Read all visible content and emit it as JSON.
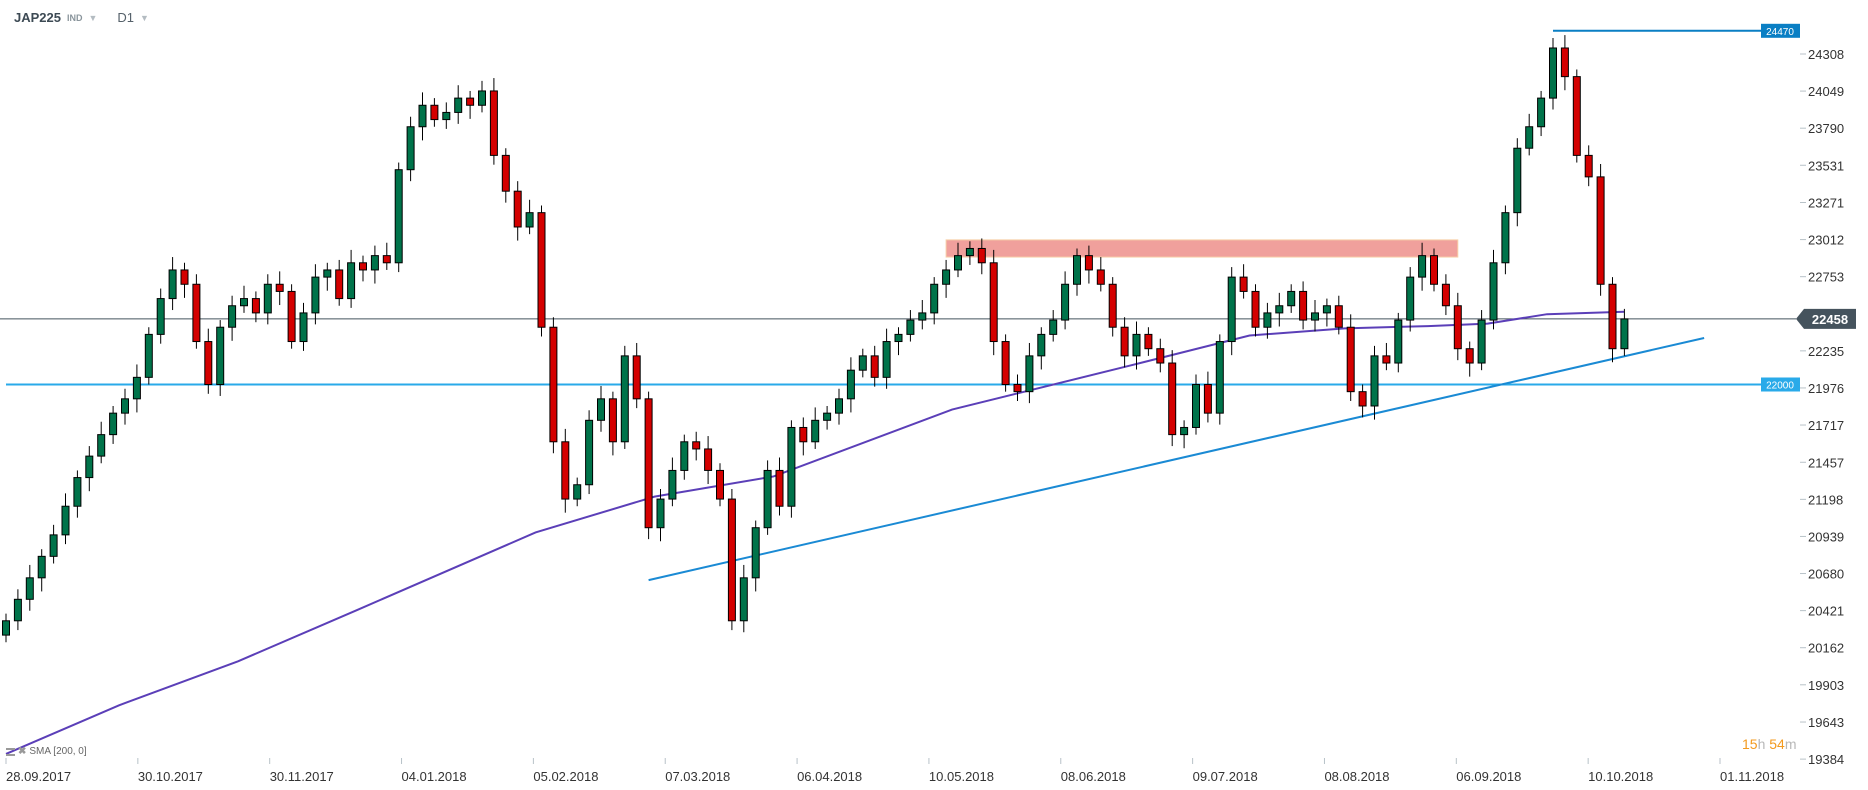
{
  "header": {
    "symbol": "JAP225",
    "type": "IND",
    "timeframe": "D1"
  },
  "indicator_legend": {
    "label": "SMA [200, 0]"
  },
  "timer": {
    "hours": "15",
    "h": "h",
    "minutes": "54",
    "m": "m"
  },
  "colors": {
    "up": "#00734a",
    "down": "#d40000",
    "sma": "#5b3fb8",
    "trend": "#1a8ad4",
    "level_22000": "#29aae9",
    "level_24470": "#0a7fc4",
    "current": "#45535d",
    "zone": "#f0a09c"
  },
  "chart_data": {
    "type": "candlestick",
    "title": "",
    "ylim": [
      19384,
      24600
    ],
    "y_ticks": [
      24308,
      24049,
      23790,
      23531,
      23271,
      23012,
      22753,
      22235,
      21976,
      21717,
      21457,
      21198,
      20939,
      20680,
      20421,
      20162,
      19903,
      19643,
      19384
    ],
    "x_ticks": [
      "28.09.2017",
      "30.10.2017",
      "30.11.2017",
      "04.01.2018",
      "05.02.2018",
      "07.03.2018",
      "06.04.2018",
      "10.05.2018",
      "08.06.2018",
      "09.07.2018",
      "08.08.2018",
      "06.09.2018",
      "10.10.2018",
      "01.11.2018"
    ],
    "closes": [
      20350,
      20500,
      20650,
      20800,
      20950,
      21150,
      21350,
      21500,
      21650,
      21800,
      21900,
      22050,
      22350,
      22600,
      22800,
      22700,
      22300,
      22000,
      22400,
      22550,
      22600,
      22500,
      22700,
      22650,
      22300,
      22500,
      22750,
      22800,
      22600,
      22850,
      22800,
      22900,
      22850,
      23500,
      23800,
      23950,
      23850,
      23900,
      24000,
      23950,
      24050,
      23600,
      23350,
      23100,
      23200,
      22400,
      21600,
      21200,
      21300,
      21750,
      21900,
      21600,
      22200,
      21900,
      21000,
      21200,
      21400,
      21600,
      21550,
      21400,
      21200,
      20350,
      20650,
      21000,
      21400,
      21150,
      21700,
      21600,
      21750,
      21800,
      21900,
      22100,
      22200,
      22050,
      22300,
      22350,
      22450,
      22500,
      22700,
      22800,
      22900,
      22950,
      22850,
      22300,
      22000,
      21950,
      22200,
      22350,
      22450,
      22700,
      22900,
      22800,
      22700,
      22400,
      22200,
      22350,
      22250,
      22150,
      21650,
      21700,
      22000,
      21800,
      22300,
      22750,
      22650,
      22400,
      22500,
      22550,
      22650,
      22450,
      22500,
      22550,
      22400,
      21950,
      21850,
      22200,
      22150,
      22450,
      22750,
      22900,
      22700,
      22550,
      22250,
      22150,
      22450,
      22850,
      23200,
      23650,
      23800,
      24000,
      24350,
      24150,
      23600,
      23450,
      22700,
      22250,
      22458
    ],
    "first_open": 20250,
    "sma": {
      "name": "SMA [200, 0]",
      "period": 200,
      "points": [
        [
          0,
          19420
        ],
        [
          9.5,
          19760
        ],
        [
          19.5,
          20067
        ],
        [
          29.5,
          20425
        ],
        [
          44.5,
          20967
        ],
        [
          54.5,
          21217
        ],
        [
          64.5,
          21358
        ],
        [
          79.5,
          21825
        ],
        [
          94.5,
          22133
        ],
        [
          104.5,
          22342
        ],
        [
          112.5,
          22392
        ],
        [
          119.5,
          22408
        ],
        [
          124.5,
          22425
        ],
        [
          129.5,
          22491
        ],
        [
          136,
          22508
        ]
      ]
    },
    "levels": [
      {
        "price": 24470,
        "label": "24470",
        "from_candle": 130
      },
      {
        "price": 22000,
        "label": "22000",
        "from_candle": 0
      }
    ],
    "current_price": {
      "value": 22458,
      "label": "22458"
    },
    "trendline": [
      [
        54,
        20634
      ],
      [
        142.7,
        22325
      ]
    ],
    "resistance_zone": {
      "from_candle": 79,
      "to_candle": 122,
      "low": 22890,
      "high": 23010
    }
  }
}
